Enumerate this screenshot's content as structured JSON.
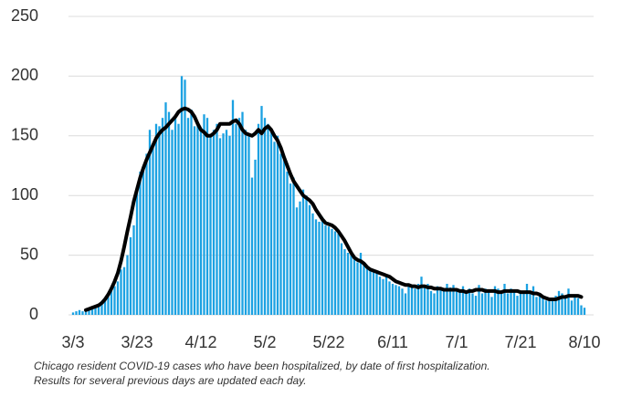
{
  "chart_data": {
    "type": "bar",
    "categories": [
      "3/3",
      null,
      null,
      null,
      null,
      null,
      null,
      null,
      null,
      null,
      null,
      null,
      null,
      null,
      null,
      null,
      null,
      null,
      null,
      null,
      "3/23",
      null,
      null,
      null,
      null,
      null,
      null,
      null,
      null,
      null,
      null,
      null,
      null,
      null,
      null,
      null,
      null,
      null,
      null,
      null,
      "4/12",
      null,
      null,
      null,
      null,
      null,
      null,
      null,
      null,
      null,
      null,
      null,
      null,
      null,
      null,
      null,
      null,
      null,
      null,
      null,
      "5/2",
      null,
      null,
      null,
      null,
      null,
      null,
      null,
      null,
      null,
      null,
      null,
      null,
      null,
      null,
      null,
      null,
      null,
      null,
      null,
      "5/22",
      null,
      null,
      null,
      null,
      null,
      null,
      null,
      null,
      null,
      null,
      null,
      null,
      null,
      null,
      null,
      null,
      null,
      null,
      null,
      "6/11",
      null,
      null,
      null,
      null,
      null,
      null,
      null,
      null,
      null,
      null,
      null,
      null,
      null,
      null,
      null,
      null,
      null,
      null,
      null,
      "7/1",
      null,
      null,
      null,
      null,
      null,
      null,
      null,
      null,
      null,
      null,
      null,
      null,
      null,
      null,
      null,
      null,
      null,
      null,
      null,
      "7/21",
      null,
      null,
      null,
      null,
      null,
      null,
      null,
      null,
      null,
      null,
      null,
      null,
      null,
      null,
      null,
      null,
      null,
      null,
      null,
      "8/10"
    ],
    "series": [
      {
        "type": "bar",
        "color": "#1ba1e2",
        "values": [
          2,
          3,
          4,
          3,
          5,
          6,
          5,
          7,
          8,
          10,
          12,
          15,
          22,
          24,
          28,
          38,
          40,
          50,
          65,
          75,
          105,
          120,
          125,
          135,
          155,
          140,
          160,
          158,
          165,
          178,
          170,
          155,
          165,
          160,
          200,
          197,
          165,
          172,
          158,
          160,
          155,
          168,
          165,
          150,
          155,
          160,
          148,
          152,
          155,
          150,
          180,
          160,
          165,
          170,
          155,
          150,
          115,
          130,
          160,
          175,
          165,
          160,
          155,
          145,
          150,
          135,
          130,
          120,
          110,
          115,
          90,
          95,
          105,
          100,
          92,
          85,
          80,
          78,
          82,
          75,
          74,
          72,
          70,
          68,
          60,
          55,
          52,
          50,
          48,
          44,
          52,
          42,
          40,
          38,
          36,
          35,
          32,
          30,
          34,
          28,
          26,
          25,
          24,
          22,
          18,
          25,
          24,
          22,
          26,
          32,
          24,
          26,
          20,
          18,
          24,
          22,
          20,
          26,
          23,
          25,
          22,
          19,
          24,
          20,
          22,
          18,
          16,
          25,
          18,
          22,
          20,
          15,
          24,
          22,
          20,
          26,
          18,
          22,
          20,
          16,
          20,
          18,
          26,
          20,
          24,
          15,
          18,
          14,
          12,
          12,
          14,
          16,
          20,
          18,
          16,
          22,
          12,
          16,
          14,
          8,
          6
        ]
      },
      {
        "type": "line",
        "color": "#000000",
        "values": [
          null,
          null,
          null,
          null,
          4,
          5,
          6,
          7,
          8,
          10,
          13,
          17,
          22,
          28,
          35,
          45,
          57,
          70,
          82,
          95,
          105,
          115,
          123,
          130,
          136,
          142,
          148,
          152,
          155,
          157,
          160,
          163,
          166,
          170,
          172,
          173,
          172,
          170,
          166,
          160,
          155,
          153,
          150,
          150,
          152,
          155,
          160,
          160,
          160,
          160,
          162,
          163,
          160,
          155,
          152,
          151,
          150,
          152,
          155,
          152,
          156,
          158,
          155,
          150,
          146,
          140,
          132,
          125,
          118,
          112,
          108,
          104,
          100,
          98,
          96,
          93,
          88,
          84,
          80,
          77,
          76,
          75,
          73,
          70,
          66,
          62,
          57,
          52,
          48,
          46,
          45,
          43,
          40,
          38,
          37,
          36,
          35,
          34,
          33,
          32,
          30,
          28,
          27,
          26,
          25,
          25,
          24,
          24,
          23,
          24,
          24,
          23,
          23,
          22,
          22,
          22,
          21,
          21,
          21,
          21,
          21,
          20,
          20,
          19,
          20,
          20,
          21,
          21,
          21,
          20,
          20,
          20,
          20,
          19,
          19,
          20,
          20,
          20,
          20,
          20,
          19,
          19,
          19,
          19,
          18,
          18,
          17,
          15,
          14,
          13,
          13,
          13,
          14,
          15,
          15,
          16,
          16,
          16,
          16,
          15,
          null
        ]
      }
    ],
    "ylim": [
      0,
      250
    ],
    "yticks": [
      0,
      50,
      100,
      150,
      200,
      250
    ],
    "grid": true,
    "caption": [
      "Chicago resident COVID-19 cases who have been hospitalized, by date of first hospitalization.",
      "Results for several previous days are updated each day."
    ]
  }
}
